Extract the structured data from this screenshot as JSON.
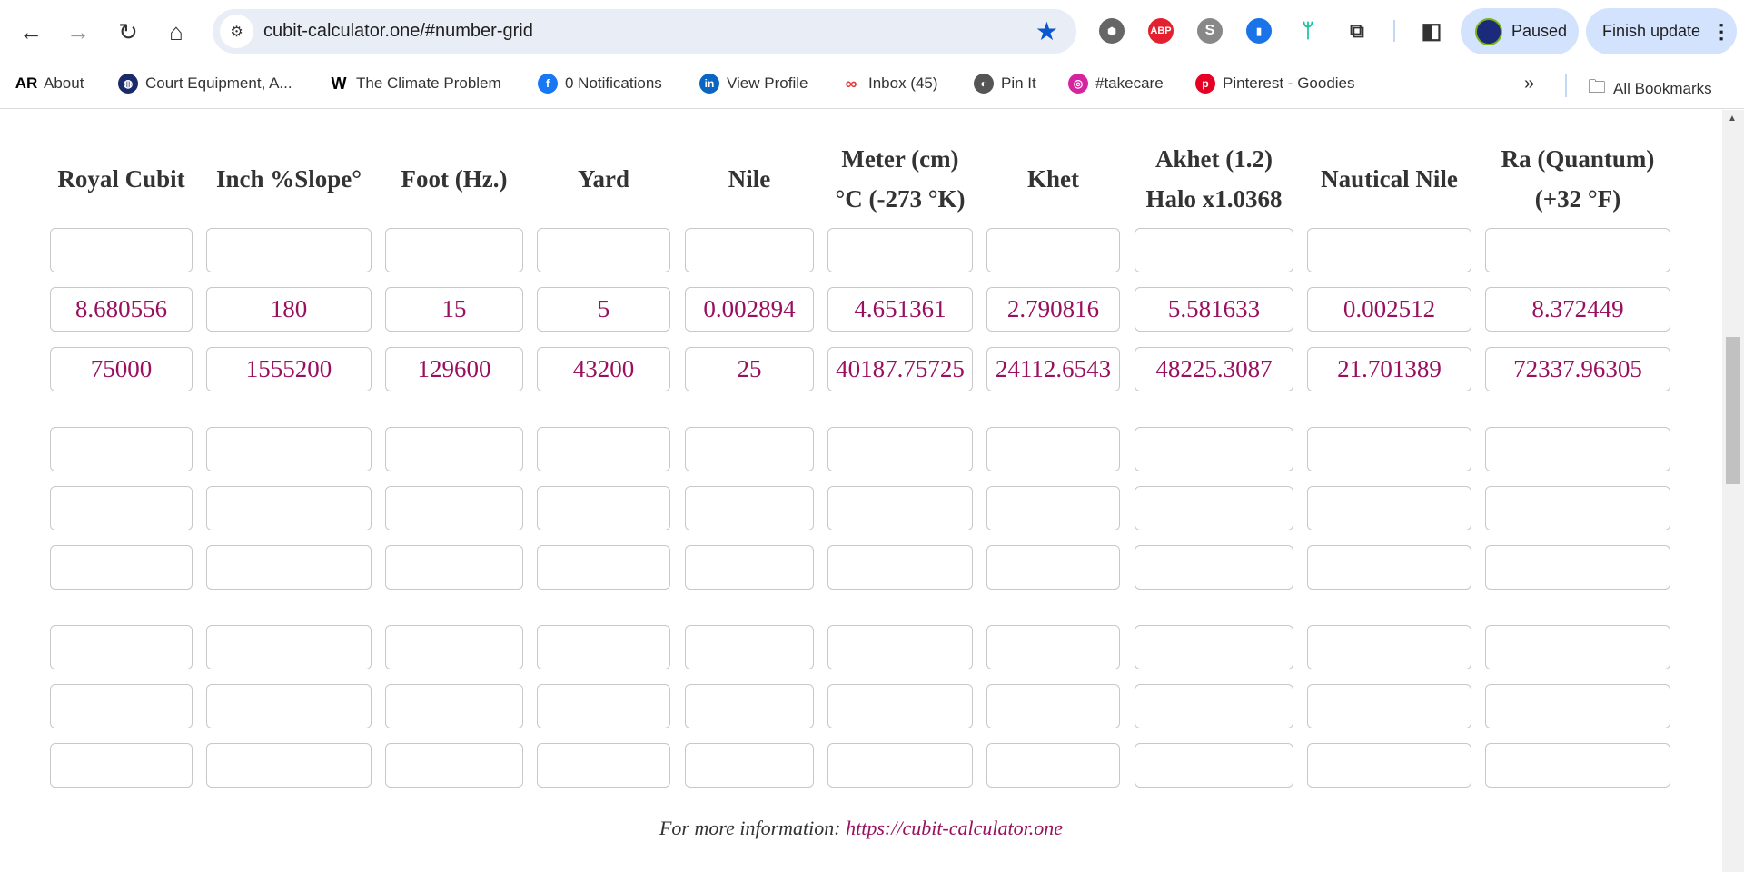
{
  "browser": {
    "url": "cubit-calculator.one/#number-grid",
    "profile_label": "Paused",
    "update_label": "Finish update",
    "extensions": [
      "microsoft-copilot-icon",
      "adblock-plus-icon",
      "skype-icon",
      "bookmark-extension-icon",
      "feedly-icon",
      "extensions-puzzle-icon"
    ],
    "extension_labels": {
      "abp": "ABP",
      "skype": "S"
    },
    "bookmarks": [
      {
        "label": "About",
        "icon": "AR"
      },
      {
        "label": "Court Equipment, A...",
        "icon": "globe-ball"
      },
      {
        "label": "The Climate Problem",
        "icon": "W"
      },
      {
        "label": "0 Notifications",
        "icon": "facebook"
      },
      {
        "label": "View Profile",
        "icon": "linkedin"
      },
      {
        "label": "Inbox (45)",
        "icon": "infinity"
      },
      {
        "label": "Pin It",
        "icon": "globe"
      },
      {
        "label": "#takecare",
        "icon": "instagram"
      },
      {
        "label": "Pinterest - Goodies",
        "icon": "pinterest"
      }
    ],
    "all_bookmarks_label": "All Bookmarks"
  },
  "grid": {
    "headers": [
      "Royal Cubit",
      "Inch %Slope°",
      "Foot (Hz.)",
      "Yard",
      "Nile",
      "Meter (cm)\n°C (-273 °K)",
      "Khet",
      "Akhet (1.2)\nHalo x1.0368",
      "Nautical Nile",
      "Ra (Quantum)\n(+32 °F)"
    ],
    "rows": [
      [
        "",
        "",
        "",
        "",
        "",
        "",
        "",
        "",
        "",
        ""
      ],
      [
        "8.680556",
        "180",
        "15",
        "5",
        "0.002894",
        "4.651361",
        "2.790816",
        "5.581633",
        "0.002512",
        "8.372449"
      ],
      [
        "75000",
        "1555200",
        "129600",
        "43200",
        "25",
        "40187.75725",
        "24112.6543",
        "48225.3087",
        "21.701389",
        "72337.96305"
      ],
      [
        "",
        "",
        "",
        "",
        "",
        "",
        "",
        "",
        "",
        ""
      ],
      [
        "",
        "",
        "",
        "",
        "",
        "",
        "",
        "",
        "",
        ""
      ],
      [
        "",
        "",
        "",
        "",
        "",
        "",
        "",
        "",
        "",
        ""
      ],
      [
        "",
        "",
        "",
        "",
        "",
        "",
        "",
        "",
        "",
        ""
      ],
      [
        "",
        "",
        "",
        "",
        "",
        "",
        "",
        "",
        "",
        ""
      ],
      [
        "",
        "",
        "",
        "",
        "",
        "",
        "",
        "",
        "",
        ""
      ]
    ]
  },
  "footer": {
    "text": "For more information: ",
    "link": "https://cubit-calculator.one"
  },
  "colors": {
    "value": "#99105f",
    "accent": "#0b57d0",
    "chip": "#d3e3fd"
  }
}
